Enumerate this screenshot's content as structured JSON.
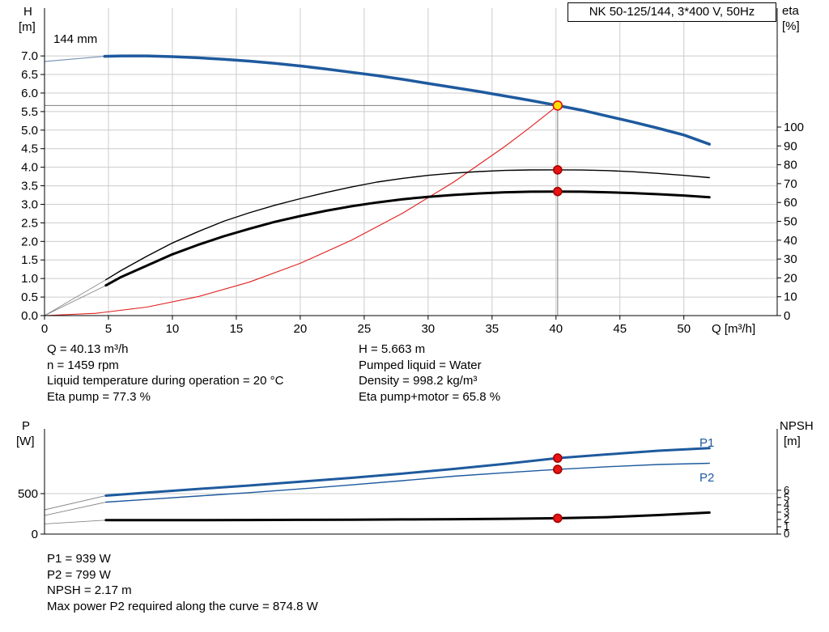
{
  "chart_data": [
    {
      "id": "top",
      "type": "line",
      "title": "NK 50-125/144, 3*400 V, 50Hz",
      "xlabel": "Q [m³/h]",
      "xlim": [
        0,
        57.3
      ],
      "x_ticks": [
        "0",
        "5",
        "10",
        "15",
        "20",
        "25",
        "30",
        "35",
        "40",
        "45",
        "50"
      ],
      "left_axis": {
        "title_lines": [
          "H",
          "[m]"
        ],
        "lim": [
          0,
          8.29
        ],
        "ticks": [
          "0.0",
          "0.5",
          "1.0",
          "1.5",
          "2.0",
          "2.5",
          "3.0",
          "3.5",
          "4.0",
          "4.5",
          "5.0",
          "5.5",
          "6.0",
          "6.5",
          "7.0"
        ]
      },
      "right_axis": {
        "title_lines": [
          "eta",
          "[%]"
        ],
        "lim": [
          0,
          163.1
        ],
        "ticks": [
          "0",
          "10",
          "20",
          "30",
          "40",
          "50",
          "60",
          "70",
          "80",
          "90",
          "100"
        ]
      },
      "grid": {
        "vertical": true,
        "horizontal": true
      },
      "annotations": {
        "impeller": "144 mm"
      },
      "crosshair": [
        {
          "axis": "left",
          "from": [
            0,
            5.663
          ],
          "to": [
            40.13,
            5.663
          ]
        },
        {
          "axis": "left",
          "from": [
            40.13,
            0
          ],
          "to": [
            40.13,
            5.663
          ]
        }
      ],
      "series": [
        {
          "name": "lead-head",
          "axis": "left",
          "color": "#7d96b8",
          "width": 1.2,
          "points": [
            [
              0,
              6.85
            ],
            [
              4.7,
              6.99
            ]
          ]
        },
        {
          "name": "lead-eta-pump",
          "axis": "right",
          "color": "#888888",
          "width": 0.9,
          "points": [
            [
              0,
              0
            ],
            [
              4.8,
              19
            ]
          ]
        },
        {
          "name": "lead-eta-pump-motor",
          "axis": "right",
          "color": "#888888",
          "width": 0.9,
          "points": [
            [
              0,
              0
            ],
            [
              4.8,
              16
            ]
          ]
        },
        {
          "name": "system-curve",
          "axis": "left",
          "color": "#e02020",
          "width": 1.1,
          "points": [
            [
              0,
              0
            ],
            [
              4,
              0.06
            ],
            [
              8,
              0.23
            ],
            [
              12,
              0.51
            ],
            [
              16,
              0.9
            ],
            [
              20,
              1.41
            ],
            [
              24,
              2.03
            ],
            [
              28,
              2.76
            ],
            [
              32,
              3.6
            ],
            [
              36,
              4.56
            ],
            [
              38,
              5.08
            ],
            [
              40.13,
              5.663
            ]
          ]
        },
        {
          "name": "head-curve-144mm",
          "axis": "left",
          "color": "#1e5a9e",
          "width": 3.5,
          "points": [
            [
              4.7,
              6.99
            ],
            [
              6,
              7.0
            ],
            [
              8,
              7.0
            ],
            [
              10,
              6.98
            ],
            [
              12,
              6.95
            ],
            [
              14,
              6.91
            ],
            [
              16,
              6.86
            ],
            [
              18,
              6.8
            ],
            [
              20,
              6.73
            ],
            [
              22,
              6.65
            ],
            [
              24,
              6.56
            ],
            [
              26,
              6.47
            ],
            [
              28,
              6.37
            ],
            [
              30,
              6.26
            ],
            [
              32,
              6.15
            ],
            [
              34,
              6.04
            ],
            [
              36,
              5.92
            ],
            [
              38,
              5.8
            ],
            [
              40.13,
              5.663
            ],
            [
              42,
              5.54
            ],
            [
              44,
              5.38
            ],
            [
              46,
              5.22
            ],
            [
              48,
              5.05
            ],
            [
              50,
              4.87
            ],
            [
              52,
              4.62
            ]
          ]
        },
        {
          "name": "eta-pump-curve",
          "axis": "right",
          "color": "#000000",
          "width": 1.4,
          "points": [
            [
              4.8,
              19
            ],
            [
              6,
              24
            ],
            [
              8,
              31.5
            ],
            [
              10,
              38.5
            ],
            [
              12,
              44.5
            ],
            [
              14,
              50
            ],
            [
              16,
              54.5
            ],
            [
              18,
              58.5
            ],
            [
              20,
              62
            ],
            [
              22,
              65.3
            ],
            [
              24,
              68.2
            ],
            [
              26,
              70.8
            ],
            [
              28,
              72.8
            ],
            [
              30,
              74.4
            ],
            [
              32,
              75.6
            ],
            [
              34,
              76.4
            ],
            [
              36,
              77
            ],
            [
              38,
              77.25
            ],
            [
              40.13,
              77.3
            ],
            [
              42,
              77.2
            ],
            [
              44,
              76.9
            ],
            [
              46,
              76.3
            ],
            [
              48,
              75.4
            ],
            [
              50,
              74.4
            ],
            [
              52,
              73.2
            ]
          ]
        },
        {
          "name": "eta-pump-motor-curve",
          "axis": "right",
          "color": "#000000",
          "width": 3,
          "points": [
            [
              4.8,
              16
            ],
            [
              6,
              20.5
            ],
            [
              8,
              26.5
            ],
            [
              10,
              32.5
            ],
            [
              12,
              37.5
            ],
            [
              14,
              42
            ],
            [
              16,
              46
            ],
            [
              18,
              49.7
            ],
            [
              20,
              52.8
            ],
            [
              22,
              55.6
            ],
            [
              24,
              58
            ],
            [
              26,
              60
            ],
            [
              28,
              61.7
            ],
            [
              30,
              63
            ],
            [
              32,
              64
            ],
            [
              34,
              64.8
            ],
            [
              36,
              65.4
            ],
            [
              38,
              65.7
            ],
            [
              40.13,
              65.8
            ],
            [
              42,
              65.7
            ],
            [
              44,
              65.4
            ],
            [
              46,
              65
            ],
            [
              48,
              64.4
            ],
            [
              50,
              63.7
            ],
            [
              52,
              62.8
            ]
          ]
        }
      ],
      "markers": [
        {
          "name": "eta-pump-point",
          "axis": "right",
          "x": 40.13,
          "y": 77.3,
          "fill": "#e81313",
          "stroke": "#a50000"
        },
        {
          "name": "eta-pump-motor-point",
          "axis": "right",
          "x": 40.13,
          "y": 65.8,
          "fill": "#e81313",
          "stroke": "#a50000"
        },
        {
          "name": "duty-point",
          "axis": "left",
          "x": 40.13,
          "y": 5.663,
          "fill": "#ffdf00",
          "stroke": "#e01010",
          "r": 5.5
        }
      ]
    },
    {
      "id": "bottom",
      "type": "line",
      "xlabel": "",
      "xlim": [
        0,
        57.3
      ],
      "x_ticks": [],
      "left_axis": {
        "title_lines": [
          "P",
          "[W]"
        ],
        "lim": [
          0,
          1300
        ],
        "ticks": [
          "0",
          "500"
        ]
      },
      "right_axis": {
        "title_lines": [
          "NPSH",
          "[m]"
        ],
        "lim": [
          0,
          14.4
        ],
        "ticks": [
          "0",
          "1",
          "2",
          "3",
          "4",
          "5",
          "6"
        ],
        "font": 13
      },
      "grid": {
        "vertical": false,
        "horizontal": true
      },
      "annotations": {
        "p1": "P1",
        "p2": "P2"
      },
      "crosshair": [],
      "series": [
        {
          "name": "lead-p1",
          "axis": "left",
          "color": "#888888",
          "width": 0.9,
          "points": [
            [
              0,
              300
            ],
            [
              4.8,
              475
            ]
          ]
        },
        {
          "name": "lead-p2",
          "axis": "left",
          "color": "#888888",
          "width": 0.9,
          "points": [
            [
              0,
              230
            ],
            [
              4.8,
              395
            ]
          ]
        },
        {
          "name": "lead-npsh",
          "axis": "right",
          "color": "#888888",
          "width": 0.9,
          "points": [
            [
              0,
              1.4
            ],
            [
              4.8,
              1.9
            ]
          ]
        },
        {
          "name": "p1-curve",
          "axis": "left",
          "color": "#1e5a9e",
          "width": 3,
          "points": [
            [
              4.8,
              475
            ],
            [
              8,
              512
            ],
            [
              12,
              558
            ],
            [
              16,
              600
            ],
            [
              20,
              648
            ],
            [
              24,
              695
            ],
            [
              28,
              748
            ],
            [
              32,
              805
            ],
            [
              36,
              868
            ],
            [
              40.13,
              939
            ],
            [
              44,
              985
            ],
            [
              48,
              1030
            ],
            [
              52,
              1062
            ]
          ]
        },
        {
          "name": "p2-curve",
          "axis": "left",
          "color": "#1e5a9e",
          "width": 1.4,
          "points": [
            [
              4.8,
              395
            ],
            [
              8,
              428
            ],
            [
              12,
              470
            ],
            [
              16,
              512
            ],
            [
              20,
              558
            ],
            [
              24,
              608
            ],
            [
              28,
              660
            ],
            [
              32,
              715
            ],
            [
              36,
              758
            ],
            [
              40.13,
              799
            ],
            [
              44,
              832
            ],
            [
              48,
              860
            ],
            [
              52,
              875
            ]
          ]
        },
        {
          "name": "npsh-curve",
          "axis": "right",
          "color": "#000000",
          "width": 3,
          "points": [
            [
              4.8,
              1.9
            ],
            [
              8,
              1.9
            ],
            [
              12,
              1.91
            ],
            [
              16,
              1.93
            ],
            [
              20,
              1.95
            ],
            [
              24,
              1.97
            ],
            [
              28,
              2.0
            ],
            [
              32,
              2.04
            ],
            [
              36,
              2.09
            ],
            [
              40.13,
              2.17
            ],
            [
              44,
              2.32
            ],
            [
              48,
              2.6
            ],
            [
              52,
              2.95
            ]
          ]
        }
      ],
      "markers": [
        {
          "name": "p1-point",
          "axis": "left",
          "x": 40.13,
          "y": 939,
          "fill": "#e81313",
          "stroke": "#a50000"
        },
        {
          "name": "p2-point",
          "axis": "left",
          "x": 40.13,
          "y": 799,
          "fill": "#e81313",
          "stroke": "#a50000"
        },
        {
          "name": "npsh-point",
          "axis": "right",
          "x": 40.13,
          "y": 2.17,
          "fill": "#e81313",
          "stroke": "#a50000"
        }
      ]
    }
  ],
  "operating_info": {
    "left": [
      "Q = 40.13 m³/h",
      "n = 1459 rpm",
      "Liquid temperature during operation = 20 °C",
      "Eta pump = 77.3 %"
    ],
    "right": [
      "H = 5.663 m",
      "Pumped liquid = Water",
      "Density = 998.2 kg/m³",
      "Eta pump+motor = 65.8 %"
    ]
  },
  "power_info": [
    "P1 = 939 W",
    "P2 = 799 W",
    "NPSH = 2.17 m",
    "Max power P2 required along the curve = 874.8 W"
  ],
  "colors": {
    "curve_blue": "#1e5a9e",
    "curve_red": "#e02020",
    "marker_red": "#e81313",
    "marker_yellow": "#ffdf00",
    "grid": "#cccccc",
    "crosshair": "#7f7f7f",
    "axis": "#000000"
  }
}
